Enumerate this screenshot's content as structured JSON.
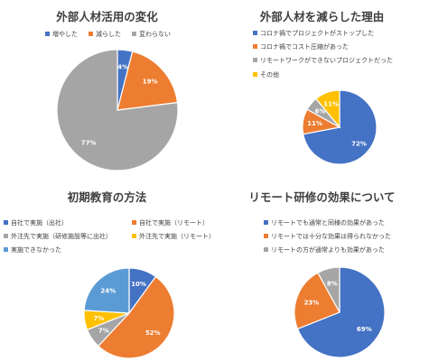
{
  "colors": {
    "blue": "#4472C4",
    "orange": "#ED7D31",
    "gray": "#A5A5A5",
    "yellow": "#FFC000",
    "lightblue": "#5B9BD5"
  },
  "chart_data": [
    {
      "type": "pie",
      "title": "外部人材活用の変化",
      "legend_position": "top",
      "categories": [
        "増やした",
        "減らした",
        "変わらない"
      ],
      "values": [
        4,
        19,
        77
      ],
      "labels": [
        "4%",
        "19%",
        "77%"
      ]
    },
    {
      "type": "pie",
      "title": "外部人材を減らした理由",
      "legend_position": "top",
      "categories": [
        "コロナ禍でプロジェクトがストップした",
        "コロナ禍でコスト圧縮があった",
        "リモートワークができないプロジェクトだった",
        "その他"
      ],
      "values": [
        72,
        11,
        6,
        11
      ],
      "labels": [
        "72%",
        "11%",
        "6%",
        "11%"
      ]
    },
    {
      "type": "pie",
      "title": "初期教育の方法",
      "legend_position": "top",
      "categories": [
        "自社で実施（出社）",
        "自社で実施（リモート）",
        "外注先で実施（研修施設等に出社）",
        "外注先で実施（リモート）",
        "実施できなかった"
      ],
      "values": [
        10,
        52,
        7,
        7,
        24
      ],
      "labels": [
        "10%",
        "52%",
        "7%",
        "7%",
        "24%"
      ]
    },
    {
      "type": "pie",
      "title": "リモート研修の効果について",
      "legend_position": "top",
      "categories": [
        "リモートでも通常と同様の効果があった",
        "リモートでは十分な効果は得られなかった",
        "リモートの方が通常よりも効果があった"
      ],
      "values": [
        69,
        23,
        8
      ],
      "labels": [
        "69%",
        "23%",
        "8%"
      ]
    }
  ]
}
